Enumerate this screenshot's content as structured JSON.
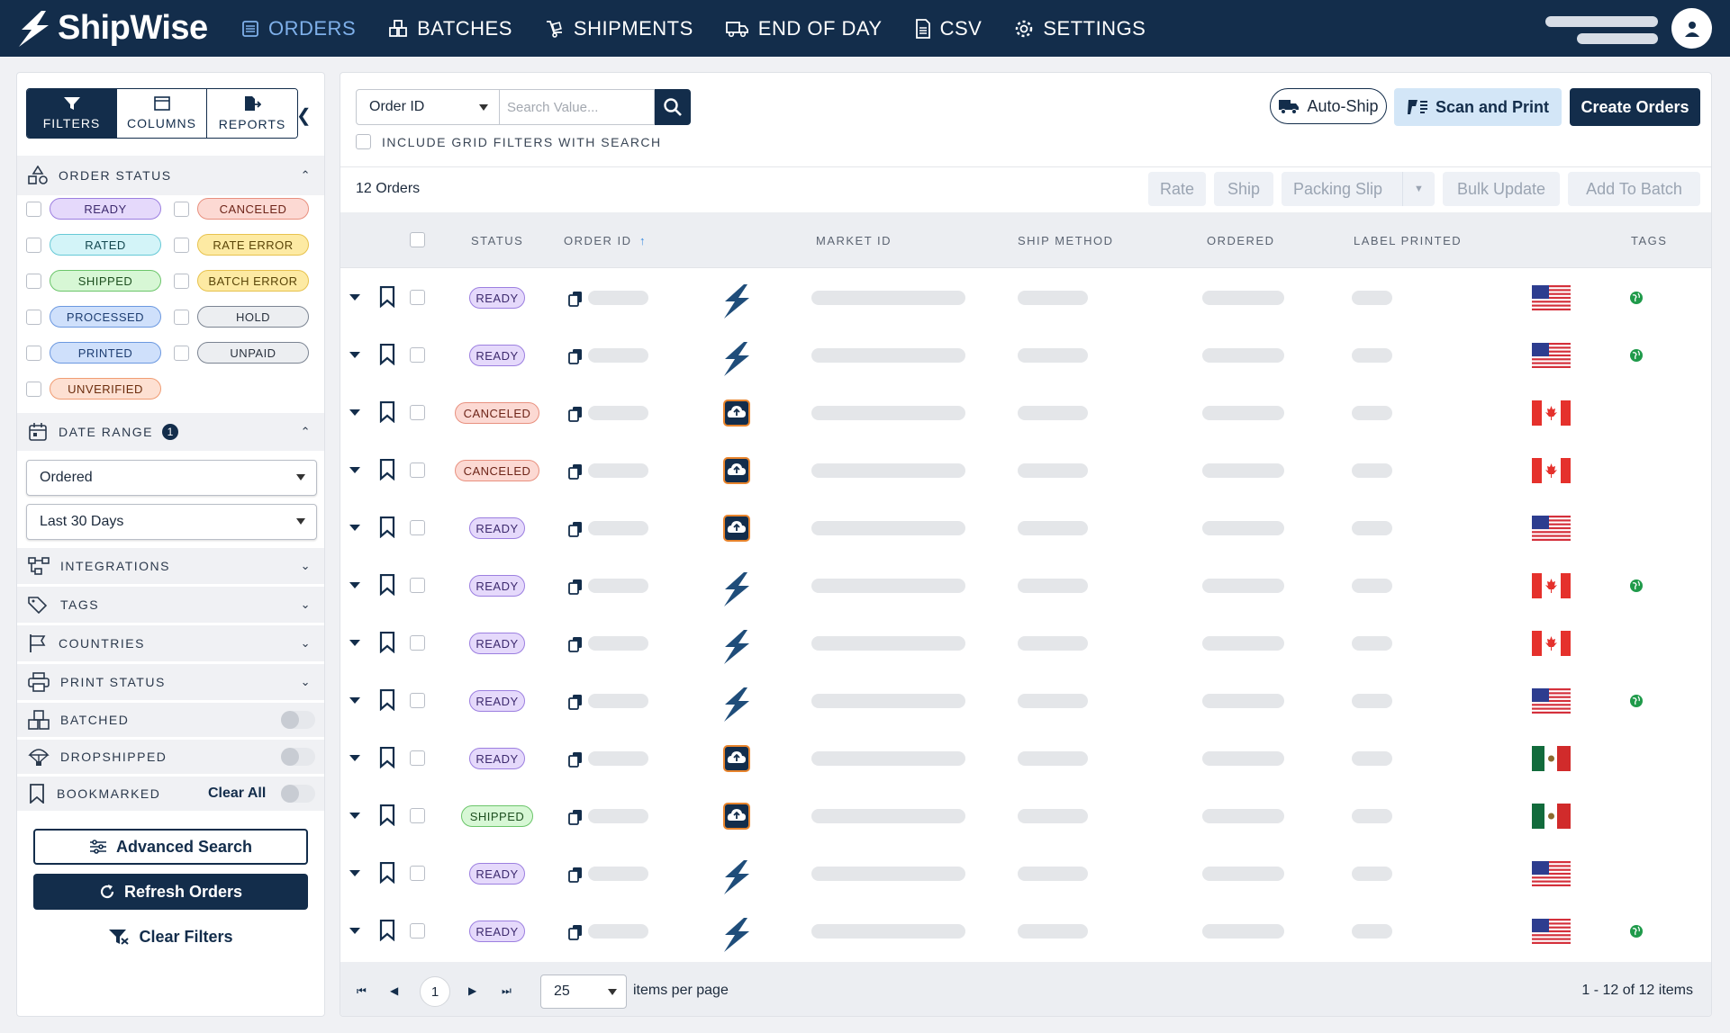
{
  "brand": {
    "name": "ShipWise",
    "color": "#132d4b"
  },
  "nav": [
    {
      "label": "ORDERS",
      "icon": "orders-icon",
      "active": true
    },
    {
      "label": "BATCHES",
      "icon": "batches-icon"
    },
    {
      "label": "SHIPMENTS",
      "icon": "shipments-icon"
    },
    {
      "label": "END OF DAY",
      "icon": "truck-icon"
    },
    {
      "label": "CSV",
      "icon": "csv-file-icon"
    },
    {
      "label": "SETTINGS",
      "icon": "gear-icon"
    }
  ],
  "sidebar": {
    "tabs": [
      {
        "label": "FILTERS",
        "icon": "filter-icon",
        "active": true
      },
      {
        "label": "COLUMNS",
        "icon": "columns-icon"
      },
      {
        "label": "REPORTS",
        "icon": "reports-icon"
      }
    ],
    "order_status": {
      "title": "ORDER STATUS",
      "statuses": [
        "READY",
        "CANCELED",
        "RATED",
        "RATE ERROR",
        "SHIPPED",
        "BATCH ERROR",
        "PROCESSED",
        "HOLD",
        "PRINTED",
        "UNPAID",
        "UNVERIFIED"
      ]
    },
    "date_range": {
      "title": "DATE RANGE",
      "badge": "1",
      "field": "Ordered",
      "range": "Last 30 Days"
    },
    "sections": {
      "integrations": "INTEGRATIONS",
      "tags": "TAGS",
      "countries": "COUNTRIES",
      "print_status": "PRINT STATUS",
      "batched": "BATCHED",
      "dropshipped": "DROPSHIPPED",
      "bookmarked": "BOOKMARKED",
      "clear_all": "Clear All"
    },
    "buttons": {
      "advanced": "Advanced Search",
      "refresh": "Refresh Orders",
      "clear": "Clear Filters"
    }
  },
  "search": {
    "field": "Order ID",
    "placeholder": "Search Value...",
    "include_label": "INCLUDE GRID FILTERS WITH SEARCH"
  },
  "toolbar": {
    "autoship": "Auto-Ship",
    "scan": "Scan and Print",
    "create": "Create Orders"
  },
  "grid": {
    "count": "12 Orders",
    "actions": [
      "Rate",
      "Ship",
      "Packing Slip",
      "Bulk Update",
      "Add To Batch"
    ],
    "columns": [
      "STATUS",
      "ORDER ID",
      "MARKET ID",
      "SHIP METHOD",
      "ORDERED",
      "LABEL PRINTED",
      "TAGS"
    ],
    "rows": [
      {
        "status": "READY",
        "market": "shipwise",
        "country": "us",
        "tag": true
      },
      {
        "status": "READY",
        "market": "shipwise",
        "country": "us",
        "tag": true
      },
      {
        "status": "CANCELED",
        "market": "upload",
        "country": "ca",
        "tag": false
      },
      {
        "status": "CANCELED",
        "market": "upload",
        "country": "ca",
        "tag": false
      },
      {
        "status": "READY",
        "market": "upload",
        "country": "us",
        "tag": false
      },
      {
        "status": "READY",
        "market": "shipwise",
        "country": "ca",
        "tag": true
      },
      {
        "status": "READY",
        "market": "shipwise",
        "country": "ca",
        "tag": false
      },
      {
        "status": "READY",
        "market": "shipwise",
        "country": "us",
        "tag": true
      },
      {
        "status": "READY",
        "market": "upload",
        "country": "mx",
        "tag": false
      },
      {
        "status": "SHIPPED",
        "market": "upload",
        "country": "mx",
        "tag": false
      },
      {
        "status": "READY",
        "market": "shipwise",
        "country": "us",
        "tag": false
      },
      {
        "status": "READY",
        "market": "shipwise",
        "country": "us",
        "tag": true
      }
    ]
  },
  "pager": {
    "page": "1",
    "page_size": "25",
    "per_page_label": "items per page",
    "info": "1 - 12 of 12 items"
  },
  "status_colors": {
    "READY": {
      "bg": "#e5d9fb",
      "border": "#9c7fe0",
      "fg": "#3d2a6e"
    },
    "CANCELED": {
      "bg": "#fcd9d3",
      "border": "#e8907f",
      "fg": "#6d2418"
    },
    "RATED": {
      "bg": "#d3f4f8",
      "border": "#66c9d6",
      "fg": "#134850"
    },
    "RATE ERROR": {
      "bg": "#fdeaa3",
      "border": "#e7c24e",
      "fg": "#5a4508"
    },
    "SHIPPED": {
      "bg": "#d7f7d5",
      "border": "#6bc56a",
      "fg": "#1e5020"
    },
    "BATCH ERROR": {
      "bg": "#fdeaa3",
      "border": "#e7c24e",
      "fg": "#5a4508"
    },
    "PROCESSED": {
      "bg": "#cfe0fb",
      "border": "#6b98e0",
      "fg": "#1e3e72"
    },
    "HOLD": {
      "bg": "#eceef1",
      "border": "#7b8492",
      "fg": "#2a323e"
    },
    "PRINTED": {
      "bg": "#cfe0fb",
      "border": "#6b98e0",
      "fg": "#1e3e72"
    },
    "UNPAID": {
      "bg": "#eceef1",
      "border": "#7b8492",
      "fg": "#2a323e"
    },
    "UNVERIFIED": {
      "bg": "#fde0d2",
      "border": "#f09c73",
      "fg": "#6b2c0c"
    }
  }
}
